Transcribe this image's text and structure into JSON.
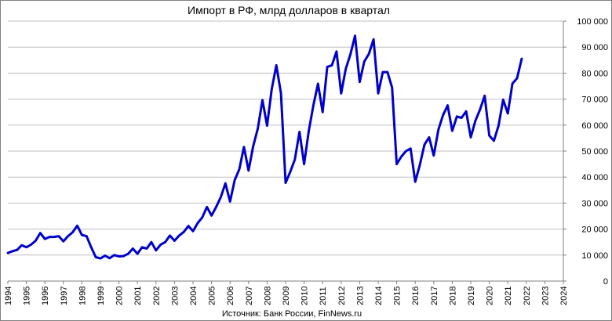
{
  "chart_data": {
    "type": "line",
    "title": "Импорт в РФ, млрд долларов в квартал",
    "source_note": "Источник: Банк России, FinNews.ru",
    "xlabel": "",
    "ylabel": "",
    "xlim": [
      1994,
      2024
    ],
    "ylim": [
      0,
      100000
    ],
    "x_ticks": [
      "1994",
      "1995",
      "1996",
      "1997",
      "1998",
      "1999",
      "2000",
      "2001",
      "2002",
      "2003",
      "2004",
      "2005",
      "2006",
      "2007",
      "2008",
      "2009",
      "2010",
      "2011",
      "2012",
      "2013",
      "2014",
      "2015",
      "2016",
      "2017",
      "2018",
      "2019",
      "2020",
      "2021",
      "2022",
      "2023",
      "2024"
    ],
    "y_ticks": [
      {
        "value": 0,
        "label": "0"
      },
      {
        "value": 10000,
        "label": "10 000"
      },
      {
        "value": 20000,
        "label": "20 000"
      },
      {
        "value": 30000,
        "label": "30 000"
      },
      {
        "value": 40000,
        "label": "40 000"
      },
      {
        "value": 50000,
        "label": "50 000"
      },
      {
        "value": 60000,
        "label": "60 000"
      },
      {
        "value": 70000,
        "label": "70 000"
      },
      {
        "value": 80000,
        "label": "80 000"
      },
      {
        "value": 90000,
        "label": "90 000"
      },
      {
        "value": 100000,
        "label": "100 000"
      }
    ],
    "grid": true,
    "legend": "none",
    "colors": {
      "series": "#0000cc",
      "grid": "#bfbfbf",
      "axis": "#808080"
    },
    "series": [
      {
        "x": [
          1994.0,
          1994.25,
          1994.5,
          1994.75,
          1995.0,
          1995.25,
          1995.5,
          1995.75,
          1996.0,
          1996.25,
          1996.5,
          1996.75,
          1997.0,
          1997.25,
          1997.5,
          1997.75,
          1998.0,
          1998.25,
          1998.5,
          1998.75,
          1999.0,
          1999.25,
          1999.5,
          1999.75,
          2000.0,
          2000.25,
          2000.5,
          2000.75,
          2001.0,
          2001.25,
          2001.5,
          2001.75,
          2002.0,
          2002.25,
          2002.5,
          2002.75,
          2003.0,
          2003.25,
          2003.5,
          2003.75,
          2004.0,
          2004.25,
          2004.5,
          2004.75,
          2005.0,
          2005.25,
          2005.5,
          2005.75,
          2006.0,
          2006.25,
          2006.5,
          2006.75,
          2007.0,
          2007.25,
          2007.5,
          2007.75,
          2008.0,
          2008.25,
          2008.5,
          2008.75,
          2009.0,
          2009.25,
          2009.5,
          2009.75,
          2010.0,
          2010.25,
          2010.5,
          2010.75,
          2011.0,
          2011.25,
          2011.5,
          2011.75,
          2012.0,
          2012.25,
          2012.5,
          2012.75,
          2013.0,
          2013.25,
          2013.5,
          2013.75,
          2014.0,
          2014.25,
          2014.5,
          2014.75,
          2015.0,
          2015.25,
          2015.5,
          2015.75,
          2016.0,
          2016.25,
          2016.5,
          2016.75,
          2017.0,
          2017.25,
          2017.5,
          2017.75,
          2018.0,
          2018.25,
          2018.5,
          2018.75,
          2019.0,
          2019.25,
          2019.5,
          2019.75,
          2020.0,
          2020.25,
          2020.5,
          2020.75,
          2021.0,
          2021.25,
          2021.5,
          2021.75
        ],
        "values": [
          10800,
          11500,
          12000,
          13800,
          13000,
          14000,
          15500,
          18500,
          16200,
          17000,
          17000,
          17300,
          15300,
          17300,
          18800,
          21300,
          17700,
          17300,
          13000,
          9200,
          8700,
          9800,
          8800,
          10000,
          9500,
          9600,
          10500,
          12500,
          10500,
          13000,
          12500,
          15000,
          11800,
          14000,
          15000,
          17500,
          15500,
          17500,
          18900,
          21200,
          19200,
          22300,
          24500,
          28500,
          25200,
          28500,
          32300,
          37600,
          30600,
          38800,
          43000,
          51600,
          42500,
          51900,
          58700,
          69600,
          59800,
          73800,
          83000,
          72200,
          37800,
          42000,
          46800,
          57400,
          45000,
          57700,
          67600,
          75900,
          65000,
          82400,
          83000,
          88300,
          72200,
          81700,
          87200,
          94400,
          76600,
          84500,
          87400,
          93000,
          72200,
          80400,
          80400,
          74500,
          45000,
          47900,
          50000,
          51000,
          38200,
          44700,
          52500,
          55300,
          48300,
          58200,
          63800,
          67600,
          57800,
          63300,
          62800,
          65300,
          55300,
          61700,
          66000,
          71300,
          56000,
          54000,
          59800,
          69800,
          64500,
          76000,
          78000,
          85500
        ]
      }
    ]
  }
}
